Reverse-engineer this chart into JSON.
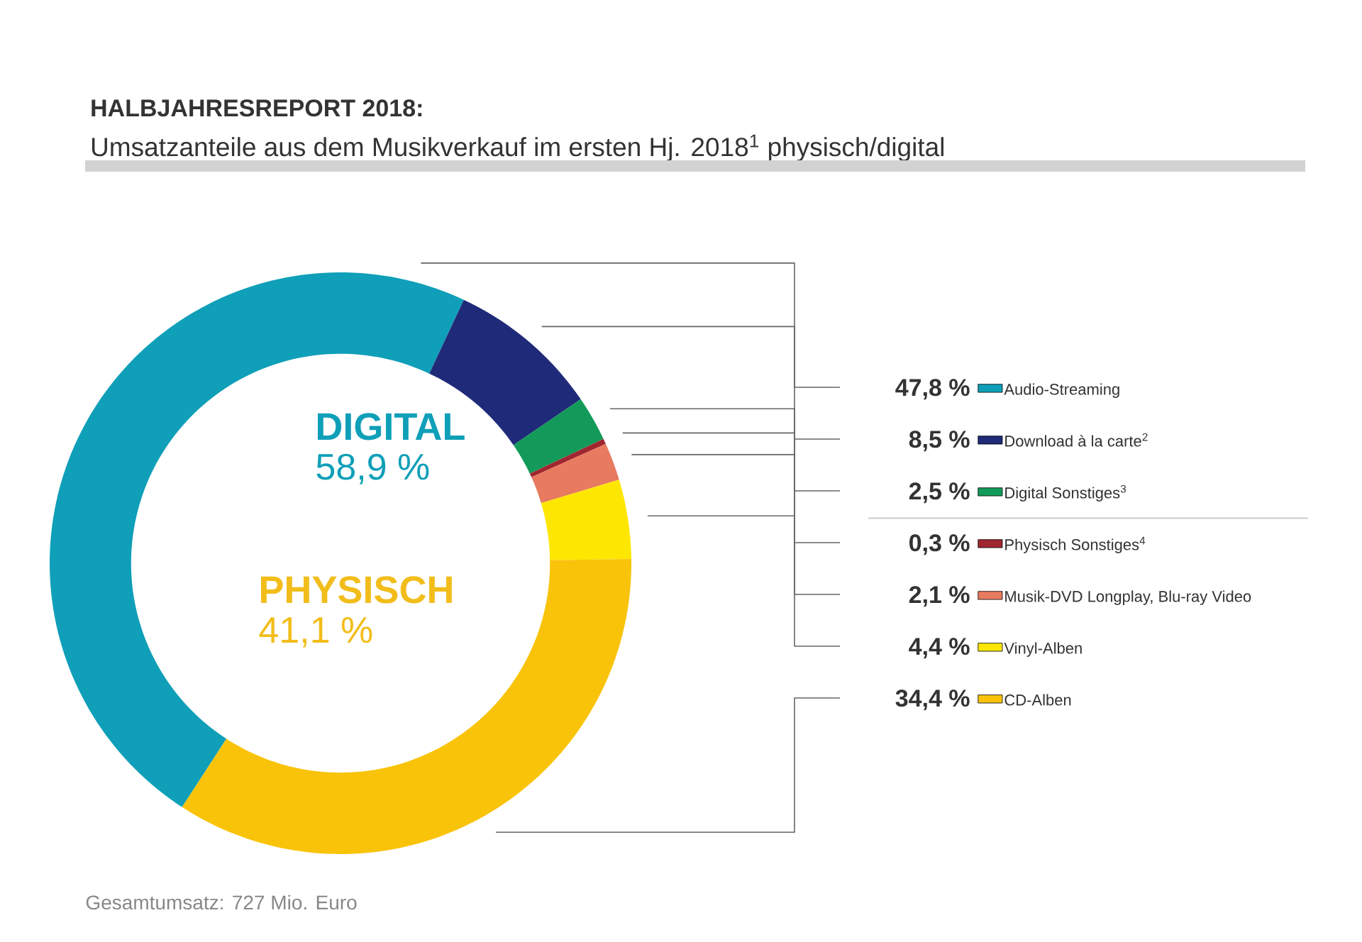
{
  "chart_data": {
    "type": "donut",
    "title": "HALBJAHRESREPORT 2018:",
    "subtitle": "Umsatzanteile aus dem Musikverkauf im ersten Hj. 2018$^{1}$ physisch/digital",
    "categories": [
      "Audio-Streaming",
      "Download à la carte$^{2}$",
      "Digital Sonstiges$^{3}$",
      "Physisch Sonstiges$^{4}$",
      "Musik-DVD Longplay, Blu-ray Video",
      "Vinyl-Alben",
      "CD-Alben"
    ],
    "values": [
      47.8,
      8.5,
      2.5,
      0.3,
      2.1,
      4.4,
      34.4
    ],
    "value_labels": [
      "47,8 %",
      "8,5 %",
      "2,5 %",
      "0,3 %",
      "2,1 %",
      "4,4 %",
      "34,4 %"
    ],
    "colors": [
      "#0f9fb8",
      "#1f2a78",
      "#139a5a",
      "#a0262f",
      "#e87a5f",
      "#fde600",
      "#f9c30a"
    ],
    "legend": "right",
    "annotations": [
      "DIGITAL",
      "58,9 %",
      "PHYSISCH",
      "41,1 %",
      "Gesamtumsatz: 727 Mio. Euro"
    ]
  }
}
